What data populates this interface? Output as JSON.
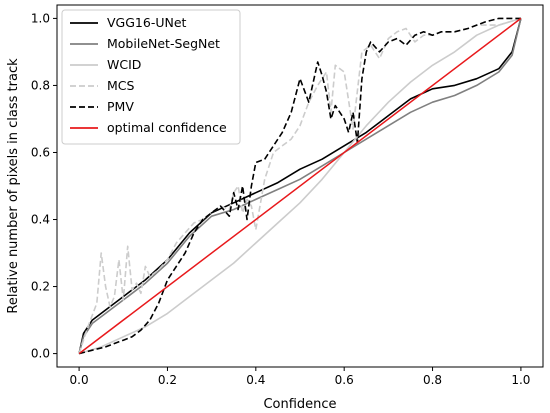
{
  "chart_data": {
    "type": "line",
    "xlabel": "Confidence",
    "ylabel": "Relative number of pixels in class track",
    "xlim": [
      -0.05,
      1.05
    ],
    "ylim": [
      -0.04,
      1.04
    ],
    "xticks": [
      0.0,
      0.2,
      0.4,
      0.6,
      0.8,
      1.0
    ],
    "yticks": [
      0.0,
      0.2,
      0.4,
      0.6,
      0.8,
      1.0
    ],
    "xtick_labels": [
      "0.0",
      "0.2",
      "0.4",
      "0.6",
      "0.8",
      "1.0"
    ],
    "ytick_labels": [
      "0.0",
      "0.2",
      "0.4",
      "0.6",
      "0.8",
      "1.0"
    ],
    "grid": false,
    "legend_position": "top-left",
    "series": [
      {
        "name": "VGG16-UNet",
        "color": "#000000",
        "dash": "solid",
        "x": [
          0,
          0.01,
          0.03,
          0.06,
          0.1,
          0.15,
          0.2,
          0.25,
          0.3,
          0.35,
          0.4,
          0.45,
          0.5,
          0.55,
          0.6,
          0.65,
          0.7,
          0.75,
          0.8,
          0.85,
          0.9,
          0.95,
          0.98,
          1.0
        ],
        "y": [
          0,
          0.06,
          0.1,
          0.13,
          0.17,
          0.22,
          0.28,
          0.36,
          0.42,
          0.45,
          0.48,
          0.51,
          0.55,
          0.58,
          0.62,
          0.66,
          0.71,
          0.76,
          0.79,
          0.8,
          0.82,
          0.85,
          0.9,
          1.0
        ]
      },
      {
        "name": "MobileNet-SegNet",
        "color": "#808080",
        "dash": "solid",
        "x": [
          0,
          0.01,
          0.03,
          0.06,
          0.1,
          0.15,
          0.2,
          0.25,
          0.3,
          0.35,
          0.4,
          0.45,
          0.5,
          0.55,
          0.6,
          0.65,
          0.7,
          0.75,
          0.8,
          0.85,
          0.9,
          0.95,
          0.98,
          1.0
        ],
        "y": [
          0,
          0.05,
          0.09,
          0.12,
          0.16,
          0.21,
          0.27,
          0.35,
          0.41,
          0.43,
          0.46,
          0.49,
          0.52,
          0.56,
          0.6,
          0.64,
          0.68,
          0.72,
          0.75,
          0.77,
          0.8,
          0.84,
          0.89,
          1.0
        ]
      },
      {
        "name": "WCID",
        "color": "#cccccc",
        "dash": "solid",
        "x": [
          0,
          0.05,
          0.1,
          0.15,
          0.2,
          0.25,
          0.3,
          0.35,
          0.4,
          0.45,
          0.5,
          0.55,
          0.6,
          0.65,
          0.7,
          0.75,
          0.8,
          0.85,
          0.9,
          0.95,
          1.0
        ],
        "y": [
          0,
          0.02,
          0.05,
          0.08,
          0.12,
          0.17,
          0.22,
          0.27,
          0.33,
          0.39,
          0.45,
          0.52,
          0.6,
          0.68,
          0.75,
          0.81,
          0.86,
          0.9,
          0.95,
          0.98,
          1.0
        ]
      },
      {
        "name": "MCS",
        "color": "#cccccc",
        "dash": "dashed",
        "x": [
          0,
          0.02,
          0.04,
          0.05,
          0.06,
          0.07,
          0.08,
          0.09,
          0.1,
          0.11,
          0.12,
          0.13,
          0.14,
          0.15,
          0.16,
          0.18,
          0.2,
          0.22,
          0.24,
          0.26,
          0.28,
          0.3,
          0.32,
          0.34,
          0.35,
          0.36,
          0.37,
          0.38,
          0.39,
          0.4,
          0.42,
          0.44,
          0.46,
          0.48,
          0.5,
          0.52,
          0.54,
          0.56,
          0.57,
          0.58,
          0.6,
          0.62,
          0.64,
          0.66,
          0.68,
          0.7,
          0.72,
          0.74,
          0.76,
          0.78,
          0.8,
          0.82,
          0.85,
          0.88,
          0.9,
          0.95,
          1.0
        ],
        "y": [
          0,
          0.08,
          0.15,
          0.3,
          0.2,
          0.14,
          0.17,
          0.28,
          0.16,
          0.32,
          0.19,
          0.21,
          0.18,
          0.26,
          0.23,
          0.25,
          0.28,
          0.33,
          0.36,
          0.39,
          0.4,
          0.42,
          0.44,
          0.43,
          0.48,
          0.5,
          0.42,
          0.46,
          0.44,
          0.37,
          0.52,
          0.6,
          0.62,
          0.64,
          0.68,
          0.75,
          0.8,
          0.84,
          0.72,
          0.86,
          0.84,
          0.67,
          0.9,
          0.92,
          0.88,
          0.94,
          0.96,
          0.97,
          0.93,
          0.95,
          0.95,
          0.96,
          0.96,
          0.97,
          0.98,
          0.98,
          1.0
        ]
      },
      {
        "name": "PMV",
        "color": "#000000",
        "dash": "dashed",
        "x": [
          0,
          0.03,
          0.06,
          0.08,
          0.1,
          0.12,
          0.14,
          0.16,
          0.18,
          0.2,
          0.22,
          0.24,
          0.26,
          0.28,
          0.3,
          0.32,
          0.34,
          0.35,
          0.36,
          0.37,
          0.38,
          0.39,
          0.4,
          0.42,
          0.44,
          0.46,
          0.48,
          0.5,
          0.52,
          0.54,
          0.55,
          0.56,
          0.57,
          0.58,
          0.59,
          0.6,
          0.61,
          0.62,
          0.63,
          0.64,
          0.65,
          0.66,
          0.68,
          0.7,
          0.72,
          0.74,
          0.76,
          0.78,
          0.8,
          0.82,
          0.85,
          0.88,
          0.9,
          0.92,
          0.95,
          1.0
        ],
        "y": [
          0,
          0.01,
          0.02,
          0.03,
          0.04,
          0.05,
          0.07,
          0.1,
          0.15,
          0.22,
          0.26,
          0.3,
          0.36,
          0.4,
          0.42,
          0.44,
          0.41,
          0.48,
          0.43,
          0.5,
          0.4,
          0.5,
          0.57,
          0.58,
          0.62,
          0.66,
          0.72,
          0.82,
          0.75,
          0.87,
          0.83,
          0.78,
          0.7,
          0.74,
          0.72,
          0.7,
          0.66,
          0.72,
          0.63,
          0.82,
          0.9,
          0.93,
          0.9,
          0.93,
          0.94,
          0.92,
          0.95,
          0.96,
          0.95,
          0.96,
          0.96,
          0.97,
          0.98,
          0.99,
          1.0,
          1.0
        ]
      },
      {
        "name": "optimal confidence",
        "color": "#e8191c",
        "dash": "solid",
        "x": [
          0,
          1.0
        ],
        "y": [
          0,
          1.0
        ]
      }
    ]
  }
}
